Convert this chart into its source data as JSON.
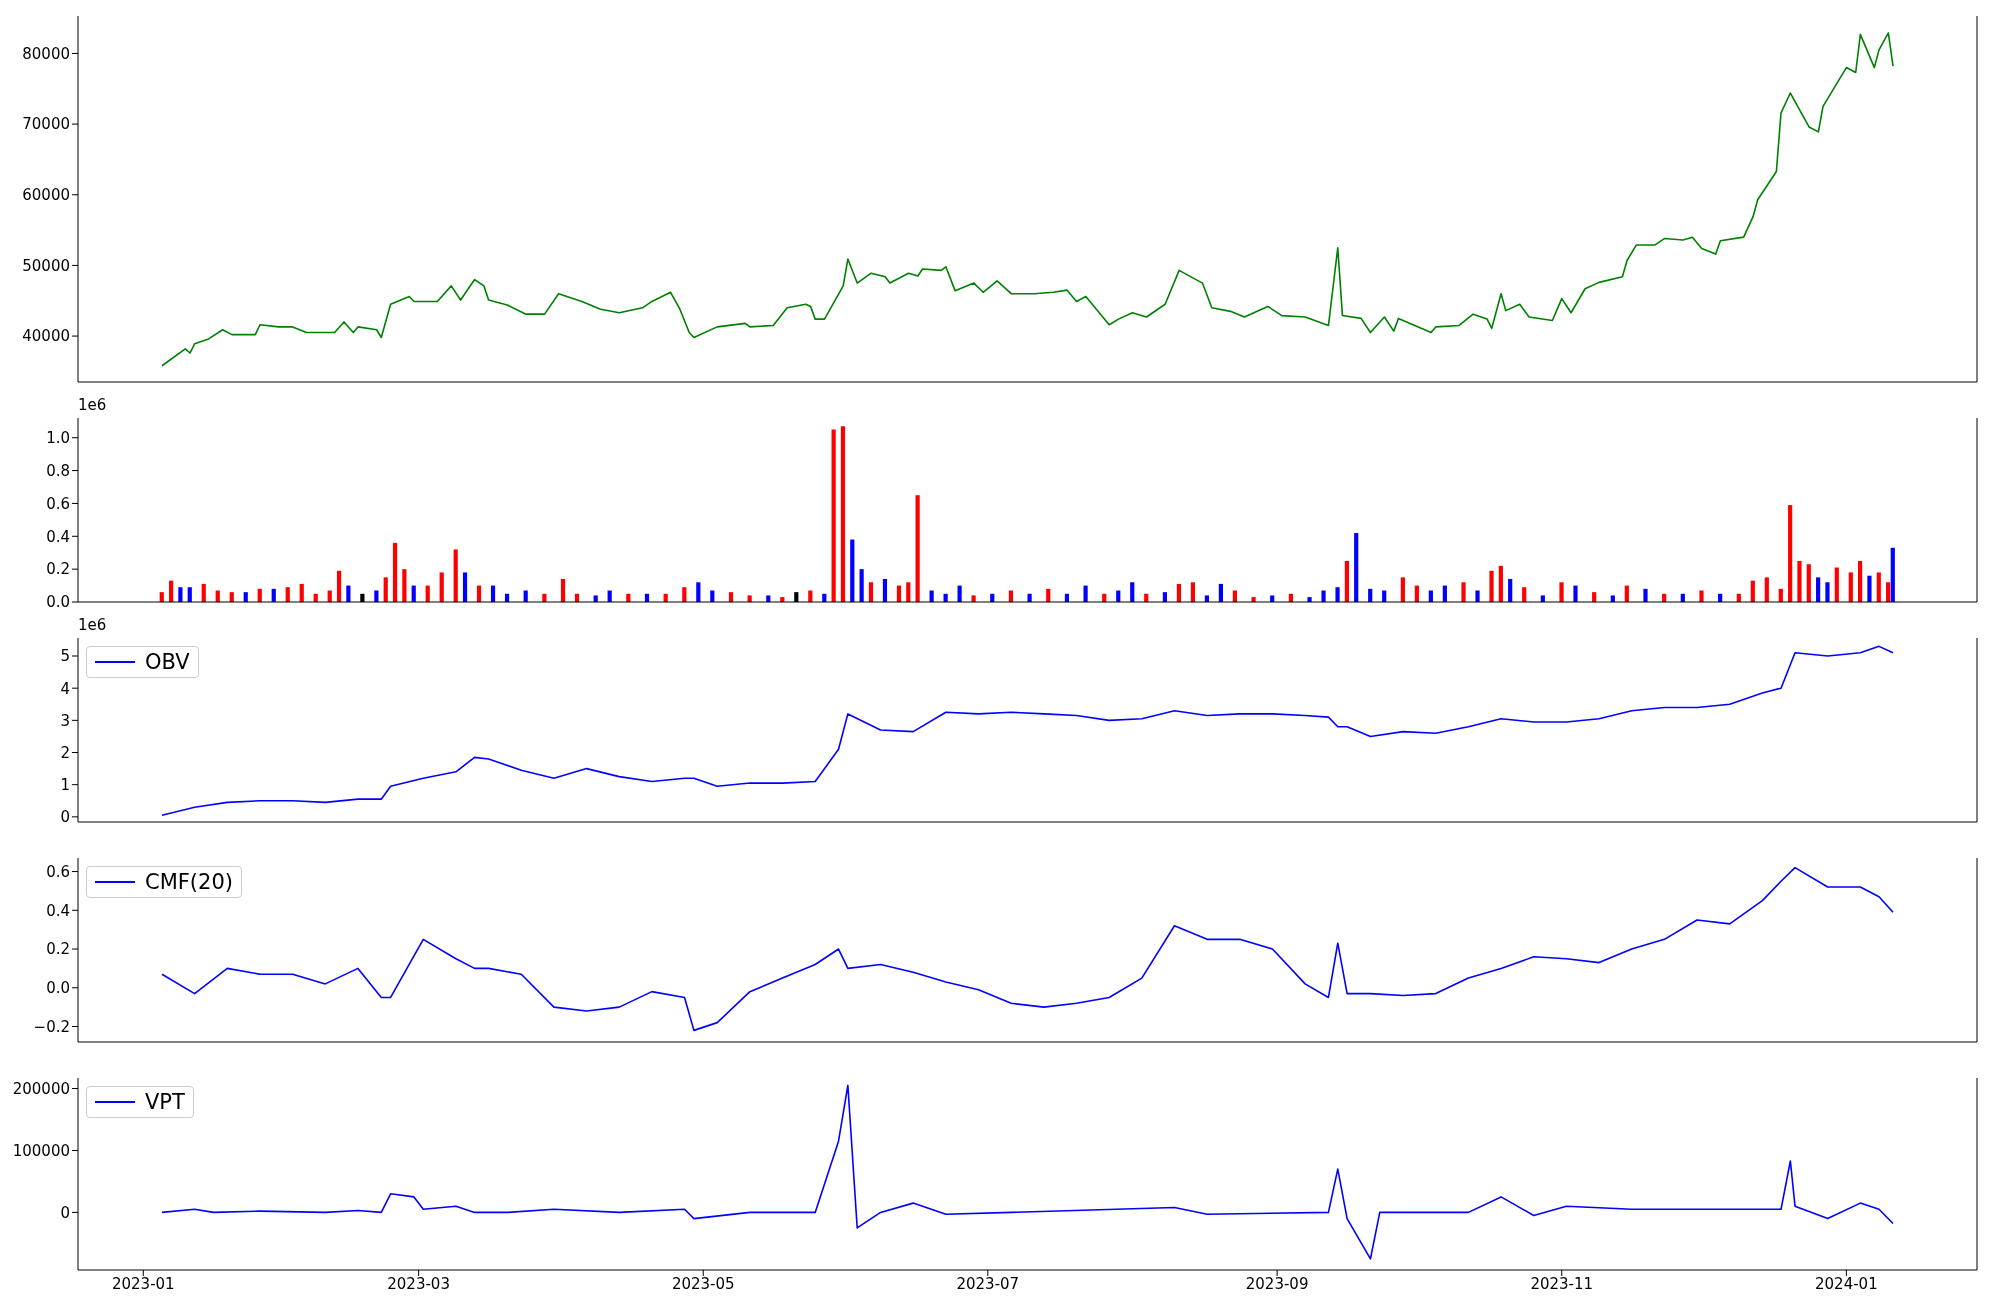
{
  "chart_data": [
    {
      "type": "line",
      "color": "#008000",
      "x": [
        "2023-01-05",
        "2023-01-10",
        "2023-01-11",
        "2023-01-12",
        "2023-01-15",
        "2023-01-18",
        "2023-01-20",
        "2023-01-25",
        "2023-01-26",
        "2023-01-30",
        "2023-02-02",
        "2023-02-05",
        "2023-02-11",
        "2023-02-13",
        "2023-02-15",
        "2023-02-16",
        "2023-02-20",
        "2023-02-21",
        "2023-02-23",
        "2023-02-27",
        "2023-02-28",
        "2023-03-05",
        "2023-03-08",
        "2023-03-10",
        "2023-03-13",
        "2023-03-15",
        "2023-03-16",
        "2023-03-20",
        "2023-03-24",
        "2023-03-28",
        "2023-03-31",
        "2023-04-05",
        "2023-04-09",
        "2023-04-13",
        "2023-04-18",
        "2023-04-20",
        "2023-04-24",
        "2023-04-26",
        "2023-04-28",
        "2023-04-29",
        "2023-05-04",
        "2023-05-10",
        "2023-05-11",
        "2023-05-16",
        "2023-05-19",
        "2023-05-23",
        "2023-05-24",
        "2023-05-25",
        "2023-05-27",
        "2023-05-31",
        "2023-06-01",
        "2023-06-03",
        "2023-06-06",
        "2023-06-09",
        "2023-06-10",
        "2023-06-14",
        "2023-06-16",
        "2023-06-17",
        "2023-06-21",
        "2023-06-22",
        "2023-06-24",
        "2023-06-28",
        "2023-06-30",
        "2023-07-03",
        "2023-07-06",
        "2023-07-11",
        "2023-07-15",
        "2023-07-18",
        "2023-07-20",
        "2023-07-22",
        "2023-07-27",
        "2023-07-29",
        "2023-08-01",
        "2023-08-04",
        "2023-08-08",
        "2023-08-11",
        "2023-08-16",
        "2023-08-18",
        "2023-08-22",
        "2023-08-25",
        "2023-08-30",
        "2023-09-02",
        "2023-09-07",
        "2023-09-12",
        "2023-09-14",
        "2023-09-15",
        "2023-09-19",
        "2023-09-21",
        "2023-09-24",
        "2023-09-26",
        "2023-09-27",
        "2023-10-04",
        "2023-10-05",
        "2023-10-10",
        "2023-10-13",
        "2023-10-16",
        "2023-10-17",
        "2023-10-19",
        "2023-10-20",
        "2023-10-23",
        "2023-10-25",
        "2023-10-30",
        "2023-11-01",
        "2023-11-03",
        "2023-11-06",
        "2023-11-09",
        "2023-11-14",
        "2023-11-15",
        "2023-11-17",
        "2023-11-21",
        "2023-11-23",
        "2023-11-27",
        "2023-11-29",
        "2023-12-01",
        "2023-12-04",
        "2023-12-05",
        "2023-12-10",
        "2023-12-12",
        "2023-12-13",
        "2023-12-17",
        "2023-12-18",
        "2023-12-20",
        "2023-12-24",
        "2023-12-26",
        "2023-12-27",
        "2024-01-01",
        "2024-01-03",
        "2024-01-04",
        "2024-01-07",
        "2024-01-08",
        "2024-01-10",
        "2024-01-11"
      ],
      "values": [
        35800,
        38200,
        37600,
        38900,
        39600,
        40900,
        40200,
        40200,
        41600,
        41300,
        41300,
        40500,
        40500,
        42000,
        40500,
        41300,
        40900,
        39800,
        44500,
        45600,
        44900,
        44900,
        47100,
        45100,
        48000,
        47100,
        45100,
        44400,
        43100,
        43100,
        46000,
        44900,
        43800,
        43300,
        44000,
        44900,
        46200,
        43800,
        40500,
        39800,
        41300,
        41800,
        41300,
        41500,
        44000,
        44500,
        44200,
        42400,
        42400,
        47100,
        50900,
        47500,
        48900,
        48400,
        47500,
        48900,
        48500,
        49500,
        49300,
        49800,
        46400,
        47500,
        46200,
        47800,
        46000,
        46000,
        46200,
        46500,
        44900,
        45600,
        41600,
        42400,
        43300,
        42700,
        44500,
        49300,
        47500,
        44000,
        43500,
        42700,
        44200,
        42900,
        42700,
        41500,
        52500,
        42900,
        42500,
        40500,
        42700,
        40700,
        42500,
        40500,
        41300,
        41500,
        43100,
        42400,
        41100,
        46000,
        43600,
        44500,
        42700,
        42200,
        45300,
        43300,
        46700,
        47600,
        48400,
        50700,
        52900,
        52900,
        53800,
        53600,
        54000,
        52400,
        51600,
        53500,
        54000,
        56900,
        59300,
        63300,
        71600,
        74400,
        69600,
        68900,
        72500,
        78000,
        77300,
        82700,
        78000,
        80500,
        82900,
        78200
      ],
      "xlim": [
        "2022-12-18",
        "2024-01-29"
      ],
      "xticks": [
        "2023-01",
        "2023-03",
        "2023-05",
        "2023-07",
        "2023-09",
        "2023-11",
        "2024-01"
      ],
      "ylim": [
        33500,
        85300
      ],
      "yticks": [
        40000,
        50000,
        60000,
        70000,
        80000
      ],
      "tick_labels": "y"
    },
    {
      "type": "bar",
      "x": [
        "2023-01-05",
        "2023-01-07",
        "2023-01-09",
        "2023-01-11",
        "2023-01-14",
        "2023-01-17",
        "2023-01-20",
        "2023-01-23",
        "2023-01-26",
        "2023-01-29",
        "2023-02-01",
        "2023-02-04",
        "2023-02-07",
        "2023-02-10",
        "2023-02-12",
        "2023-02-14",
        "2023-02-17",
        "2023-02-20",
        "2023-02-22",
        "2023-02-24",
        "2023-02-26",
        "2023-02-28",
        "2023-03-03",
        "2023-03-06",
        "2023-03-09",
        "2023-03-11",
        "2023-03-14",
        "2023-03-17",
        "2023-03-20",
        "2023-03-24",
        "2023-03-28",
        "2023-04-01",
        "2023-04-04",
        "2023-04-08",
        "2023-04-11",
        "2023-04-15",
        "2023-04-19",
        "2023-04-23",
        "2023-04-27",
        "2023-04-30",
        "2023-05-03",
        "2023-05-07",
        "2023-05-11",
        "2023-05-15",
        "2023-05-18",
        "2023-05-21",
        "2023-05-24",
        "2023-05-27",
        "2023-05-29",
        "2023-05-31",
        "2023-06-02",
        "2023-06-04",
        "2023-06-06",
        "2023-06-09",
        "2023-06-12",
        "2023-06-14",
        "2023-06-16",
        "2023-06-19",
        "2023-06-22",
        "2023-06-25",
        "2023-06-28",
        "2023-07-02",
        "2023-07-06",
        "2023-07-10",
        "2023-07-14",
        "2023-07-18",
        "2023-07-22",
        "2023-07-26",
        "2023-07-29",
        "2023-08-01",
        "2023-08-04",
        "2023-08-08",
        "2023-08-11",
        "2023-08-14",
        "2023-08-17",
        "2023-08-20",
        "2023-08-23",
        "2023-08-27",
        "2023-08-31",
        "2023-09-04",
        "2023-09-08",
        "2023-09-11",
        "2023-09-14",
        "2023-09-16",
        "2023-09-18",
        "2023-09-21",
        "2023-09-24",
        "2023-09-28",
        "2023-10-01",
        "2023-10-04",
        "2023-10-07",
        "2023-10-11",
        "2023-10-14",
        "2023-10-17",
        "2023-10-19",
        "2023-10-21",
        "2023-10-24",
        "2023-10-28",
        "2023-11-01",
        "2023-11-04",
        "2023-11-08",
        "2023-11-12",
        "2023-11-15",
        "2023-11-19",
        "2023-11-23",
        "2023-11-27",
        "2023-12-01",
        "2023-12-05",
        "2023-12-09",
        "2023-12-12",
        "2023-12-15",
        "2023-12-18",
        "2023-12-20",
        "2023-12-22",
        "2023-12-24",
        "2023-12-26",
        "2023-12-28",
        "2023-12-30",
        "2024-01-02",
        "2024-01-04",
        "2024-01-06",
        "2024-01-08",
        "2024-01-10",
        "2024-01-11"
      ],
      "values": [
        0.06,
        0.13,
        0.09,
        0.09,
        0.11,
        0.07,
        0.06,
        0.06,
        0.08,
        0.08,
        0.09,
        0.11,
        0.05,
        0.07,
        0.19,
        0.1,
        0.05,
        0.07,
        0.15,
        0.36,
        0.2,
        0.1,
        0.1,
        0.18,
        0.32,
        0.18,
        0.1,
        0.1,
        0.05,
        0.07,
        0.05,
        0.14,
        0.05,
        0.04,
        0.07,
        0.05,
        0.05,
        0.05,
        0.09,
        0.12,
        0.07,
        0.06,
        0.04,
        0.04,
        0.03,
        0.06,
        0.07,
        0.05,
        1.05,
        1.07,
        0.38,
        0.2,
        0.12,
        0.14,
        0.1,
        0.12,
        0.65,
        0.07,
        0.05,
        0.1,
        0.04,
        0.05,
        0.07,
        0.05,
        0.08,
        0.05,
        0.1,
        0.05,
        0.07,
        0.12,
        0.05,
        0.06,
        0.11,
        0.12,
        0.04,
        0.11,
        0.07,
        0.03,
        0.04,
        0.05,
        0.03,
        0.07,
        0.09,
        0.25,
        0.42,
        0.08,
        0.07,
        0.15,
        0.1,
        0.07,
        0.1,
        0.12,
        0.07,
        0.19,
        0.22,
        0.14,
        0.09,
        0.04,
        0.12,
        0.1,
        0.06,
        0.04,
        0.1,
        0.08,
        0.05,
        0.05,
        0.07,
        0.05,
        0.05,
        0.13,
        0.15,
        0.08,
        0.59,
        0.25,
        0.23,
        0.15,
        0.12,
        0.21,
        0.18,
        0.25,
        0.16,
        0.18,
        0.12,
        0.33
      ],
      "colors": [
        "#ff0000",
        "#ff0000",
        "#0000ff",
        "#0000ff",
        "#ff0000",
        "#ff0000",
        "#ff0000",
        "#0000ff",
        "#ff0000",
        "#0000ff",
        "#ff0000",
        "#ff0000",
        "#ff0000",
        "#ff0000",
        "#ff0000",
        "#0000ff",
        "#000000",
        "#0000ff",
        "#ff0000",
        "#ff0000",
        "#ff0000",
        "#0000ff",
        "#ff0000",
        "#ff0000",
        "#ff0000",
        "#0000ff",
        "#ff0000",
        "#0000ff",
        "#0000ff",
        "#0000ff",
        "#ff0000",
        "#ff0000",
        "#ff0000",
        "#0000ff",
        "#0000ff",
        "#ff0000",
        "#0000ff",
        "#ff0000",
        "#ff0000",
        "#0000ff",
        "#0000ff",
        "#ff0000",
        "#ff0000",
        "#0000ff",
        "#ff0000",
        "#000000",
        "#ff0000",
        "#0000ff",
        "#ff0000",
        "#ff0000",
        "#0000ff",
        "#0000ff",
        "#ff0000",
        "#0000ff",
        "#ff0000",
        "#ff0000",
        "#ff0000",
        "#0000ff",
        "#0000ff",
        "#0000ff",
        "#ff0000",
        "#0000ff",
        "#ff0000",
        "#0000ff",
        "#ff0000",
        "#0000ff",
        "#0000ff",
        "#ff0000",
        "#0000ff",
        "#0000ff",
        "#ff0000",
        "#0000ff",
        "#ff0000",
        "#ff0000",
        "#0000ff",
        "#0000ff",
        "#ff0000",
        "#ff0000",
        "#0000ff",
        "#ff0000",
        "#0000ff",
        "#0000ff",
        "#0000ff",
        "#ff0000",
        "#0000ff",
        "#0000ff",
        "#0000ff",
        "#ff0000",
        "#ff0000",
        "#0000ff",
        "#0000ff",
        "#ff0000",
        "#0000ff",
        "#ff0000",
        "#ff0000",
        "#0000ff",
        "#ff0000",
        "#0000ff",
        "#ff0000",
        "#0000ff",
        "#ff0000",
        "#0000ff",
        "#ff0000",
        "#0000ff",
        "#ff0000",
        "#0000ff",
        "#ff0000",
        "#0000ff",
        "#ff0000",
        "#ff0000",
        "#ff0000",
        "#ff0000",
        "#ff0000",
        "#ff0000",
        "#ff0000",
        "#0000ff",
        "#0000ff",
        "#ff0000",
        "#ff0000",
        "#ff0000",
        "#0000ff",
        "#ff0000",
        "#ff0000",
        "#0000ff"
      ],
      "xlim": [
        "2022-12-18",
        "2024-01-29"
      ],
      "xticks": [
        "2023-01",
        "2023-03",
        "2023-05",
        "2023-07",
        "2023-09",
        "2023-11",
        "2024-01"
      ],
      "ylim": [
        0,
        1.12
      ],
      "yticks": [
        {
          "value": 0,
          "label": "0.0"
        },
        0.2,
        0.4,
        0.6,
        0.8,
        {
          "value": 1,
          "label": "1.0"
        }
      ],
      "annotations": [
        "1e6"
      ],
      "tick_labels": "y"
    },
    {
      "type": "line",
      "legend": "top left",
      "series": [
        {
          "name": "OBV",
          "color": "#0000ff",
          "values": [
            0.05,
            0.3,
            0.45,
            0.5,
            0.5,
            0.45,
            0.55,
            0.55,
            0.95,
            1.2,
            1.4,
            1.85,
            1.8,
            1.45,
            1.2,
            1.5,
            1.25,
            1.1,
            1.2,
            1.2,
            0.95,
            1.05,
            1.05,
            1.1,
            2.1,
            3.2,
            2.7,
            2.65,
            3.25,
            3.2,
            3.25,
            3.2,
            3.15,
            3,
            3.05,
            3.3,
            3.15,
            3.2,
            3.2,
            3.15,
            3.1,
            2.8,
            2.8,
            2.5,
            2.65,
            2.6,
            2.8,
            3.05,
            2.95,
            2.95,
            3.05,
            3.3,
            3.4,
            3.4,
            3.5,
            3.85,
            4,
            5.1,
            5,
            5.1,
            5.3,
            5.1
          ]
        }
      ],
      "x": [
        "2023-01-05",
        "2023-01-12",
        "2023-01-19",
        "2023-01-26",
        "2023-02-02",
        "2023-02-09",
        "2023-02-16",
        "2023-02-21",
        "2023-02-23",
        "2023-03-02",
        "2023-03-09",
        "2023-03-13",
        "2023-03-16",
        "2023-03-23",
        "2023-03-30",
        "2023-04-06",
        "2023-04-13",
        "2023-04-20",
        "2023-04-27",
        "2023-04-29",
        "2023-05-04",
        "2023-05-11",
        "2023-05-18",
        "2023-05-25",
        "2023-05-30",
        "2023-06-01",
        "2023-06-08",
        "2023-06-15",
        "2023-06-22",
        "2023-06-29",
        "2023-07-06",
        "2023-07-13",
        "2023-07-20",
        "2023-07-27",
        "2023-08-03",
        "2023-08-10",
        "2023-08-17",
        "2023-08-24",
        "2023-08-31",
        "2023-09-07",
        "2023-09-12",
        "2023-09-14",
        "2023-09-16",
        "2023-09-21",
        "2023-09-28",
        "2023-10-05",
        "2023-10-12",
        "2023-10-19",
        "2023-10-26",
        "2023-11-02",
        "2023-11-09",
        "2023-11-16",
        "2023-11-23",
        "2023-11-30",
        "2023-12-07",
        "2023-12-14",
        "2023-12-18",
        "2023-12-21",
        "2023-12-28",
        "2024-01-04",
        "2024-01-08",
        "2024-01-11"
      ],
      "xlim": [
        "2022-12-18",
        "2024-01-29"
      ],
      "xticks": [
        "2023-01",
        "2023-03",
        "2023-05",
        "2023-07",
        "2023-09",
        "2023-11",
        "2024-01"
      ],
      "ylim": [
        -0.16,
        5.56
      ],
      "yticks": [
        0,
        1,
        2,
        3,
        4,
        5
      ],
      "annotations": [
        "1e6"
      ],
      "tick_labels": "y"
    },
    {
      "type": "line",
      "legend": "top left",
      "series": [
        {
          "name": "CMF(20)",
          "color": "#0000ff",
          "values": [
            0.07,
            -0.03,
            0.1,
            0.07,
            0.07,
            0.02,
            0.1,
            -0.05,
            -0.05,
            0.25,
            0.15,
            0.1,
            0.1,
            0.07,
            -0.1,
            -0.12,
            -0.1,
            -0.02,
            -0.05,
            -0.22,
            -0.18,
            -0.02,
            0.05,
            0.12,
            0.2,
            0.1,
            0.12,
            0.08,
            0.03,
            -0.01,
            -0.08,
            -0.1,
            -0.08,
            -0.05,
            0.05,
            0.32,
            0.25,
            0.25,
            0.2,
            0.02,
            -0.05,
            0.23,
            -0.03,
            -0.03,
            -0.04,
            -0.03,
            0.05,
            0.1,
            0.16,
            0.15,
            0.13,
            0.2,
            0.25,
            0.35,
            0.33,
            0.45,
            0.55,
            0.62,
            0.52,
            0.52,
            0.47,
            0.39
          ]
        }
      ],
      "x": [
        "2023-01-05",
        "2023-01-12",
        "2023-01-19",
        "2023-01-26",
        "2023-02-02",
        "2023-02-09",
        "2023-02-16",
        "2023-02-21",
        "2023-02-23",
        "2023-03-02",
        "2023-03-09",
        "2023-03-13",
        "2023-03-16",
        "2023-03-23",
        "2023-03-30",
        "2023-04-06",
        "2023-04-13",
        "2023-04-20",
        "2023-04-27",
        "2023-04-29",
        "2023-05-04",
        "2023-05-11",
        "2023-05-18",
        "2023-05-25",
        "2023-05-30",
        "2023-06-01",
        "2023-06-08",
        "2023-06-15",
        "2023-06-22",
        "2023-06-29",
        "2023-07-06",
        "2023-07-13",
        "2023-07-20",
        "2023-07-27",
        "2023-08-03",
        "2023-08-10",
        "2023-08-17",
        "2023-08-24",
        "2023-08-31",
        "2023-09-07",
        "2023-09-12",
        "2023-09-14",
        "2023-09-16",
        "2023-09-21",
        "2023-09-28",
        "2023-10-05",
        "2023-10-12",
        "2023-10-19",
        "2023-10-26",
        "2023-11-02",
        "2023-11-09",
        "2023-11-16",
        "2023-11-23",
        "2023-11-30",
        "2023-12-07",
        "2023-12-14",
        "2023-12-18",
        "2023-12-21",
        "2023-12-28",
        "2024-01-04",
        "2024-01-08",
        "2024-01-11"
      ],
      "xlim": [
        "2022-12-18",
        "2024-01-29"
      ],
      "xticks": [
        "2023-01",
        "2023-03",
        "2023-05",
        "2023-07",
        "2023-09",
        "2023-11",
        "2024-01"
      ],
      "ylim": [
        -0.28,
        0.67
      ],
      "yticks": [
        {
          "value": -0.2,
          "label": "−0.2"
        },
        {
          "value": 0,
          "label": "0.0"
        },
        {
          "value": 0.2,
          "label": "0.2"
        },
        {
          "value": 0.4,
          "label": "0.4"
        },
        {
          "value": 0.6,
          "label": "0.6"
        }
      ],
      "tick_labels": "y"
    },
    {
      "type": "line",
      "legend": "top left",
      "series": [
        {
          "name": "VPT",
          "color": "#0000ff",
          "values": [
            0,
            5000,
            0,
            2000,
            0,
            3000,
            0,
            30000,
            25000,
            5000,
            10000,
            0,
            0,
            5000,
            0,
            5000,
            -10000,
            0,
            0,
            115000,
            205000,
            -25000,
            0,
            15000,
            -3000,
            0,
            8000,
            -3000,
            0,
            70000,
            -10000,
            -75000,
            0,
            0,
            25000,
            -5000,
            10000,
            5000,
            5000,
            5000,
            83000,
            10000,
            -10000,
            15000,
            5000,
            -18000
          ]
        }
      ],
      "x": [
        "2023-01-05",
        "2023-01-12",
        "2023-01-16",
        "2023-01-26",
        "2023-02-09",
        "2023-02-16",
        "2023-02-21",
        "2023-02-23",
        "2023-02-28",
        "2023-03-02",
        "2023-03-09",
        "2023-03-13",
        "2023-03-20",
        "2023-03-30",
        "2023-04-13",
        "2023-04-27",
        "2023-04-29",
        "2023-05-11",
        "2023-05-25",
        "2023-05-30",
        "2023-06-01",
        "2023-06-03",
        "2023-06-08",
        "2023-06-15",
        "2023-06-22",
        "2023-07-06",
        "2023-08-10",
        "2023-08-17",
        "2023-09-12",
        "2023-09-14",
        "2023-09-16",
        "2023-09-21",
        "2023-09-23",
        "2023-10-12",
        "2023-10-19",
        "2023-10-26",
        "2023-11-02",
        "2023-11-16",
        "2023-12-14",
        "2023-12-18",
        "2023-12-20",
        "2023-12-21",
        "2023-12-28",
        "2024-01-04",
        "2024-01-08",
        "2024-01-11"
      ],
      "xlim": [
        "2022-12-18",
        "2024-01-29"
      ],
      "xticks": [
        "2023-01",
        "2023-03",
        "2023-05",
        "2023-07",
        "2023-09",
        "2023-11",
        "2024-01"
      ],
      "ylim": [
        -93000,
        217000
      ],
      "yticks": [
        0,
        100000,
        200000
      ]
    }
  ]
}
